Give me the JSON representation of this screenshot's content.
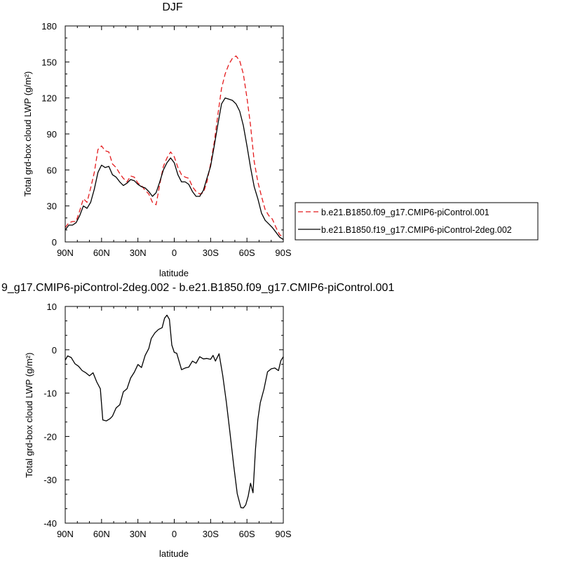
{
  "chart_data": [
    {
      "type": "line",
      "title": "DJF",
      "xlabel": "latitude",
      "ylabel": "Total grd-box cloud LWP (g/m²)",
      "xticks": [
        {
          "value": 90,
          "label": "90N"
        },
        {
          "value": 60,
          "label": "60N"
        },
        {
          "value": 30,
          "label": "30N"
        },
        {
          "value": 0,
          "label": "0"
        },
        {
          "value": -30,
          "label": "30S"
        },
        {
          "value": -60,
          "label": "60S"
        },
        {
          "value": -90,
          "label": "90S"
        }
      ],
      "xlim": [
        90,
        -90
      ],
      "ylim": [
        0,
        180
      ],
      "yticks": [
        0,
        30,
        60,
        90,
        120,
        150,
        180
      ],
      "legend_position": "right",
      "series": [
        {
          "name": "b.e21.B1850.f09_g17.CMIP6-piControl.001",
          "color": "#e41a1c",
          "dash": "dashed",
          "x": [
            90,
            87,
            84,
            81,
            78,
            75,
            72,
            69,
            66,
            63,
            60,
            57,
            54,
            51,
            48,
            45,
            42,
            39,
            36,
            33,
            30,
            27,
            24,
            21,
            18,
            15,
            12,
            9,
            6,
            3,
            0,
            -3,
            -6,
            -9,
            -12,
            -15,
            -18,
            -21,
            -24,
            -27,
            -30,
            -33,
            -36,
            -39,
            -42,
            -45,
            -48,
            -51,
            -54,
            -57,
            -60,
            -63,
            -66,
            -69,
            -72,
            -75,
            -78,
            -81,
            -84,
            -87,
            -90
          ],
          "y": [
            12,
            16,
            17,
            17,
            26,
            36,
            33,
            45,
            58,
            77,
            80,
            76,
            75,
            65,
            62,
            57,
            53,
            50,
            55,
            54,
            49,
            47,
            43,
            40,
            33,
            31,
            48,
            63,
            70,
            75,
            71,
            62,
            56,
            54,
            53,
            46,
            42,
            40,
            41,
            50,
            65,
            83,
            106,
            128,
            140,
            148,
            153,
            155,
            151,
            140,
            120,
            97,
            67,
            50,
            38,
            27,
            22,
            19,
            12,
            6,
            4
          ]
        },
        {
          "name": "b.e21.B1850.f19_g17.CMIP6-piControl-2deg.002",
          "color": "#000000",
          "dash": "solid",
          "x": [
            90,
            87,
            84,
            81,
            78,
            75,
            72,
            69,
            66,
            63,
            60,
            57,
            54,
            51,
            48,
            45,
            42,
            39,
            36,
            33,
            30,
            27,
            24,
            21,
            18,
            15,
            12,
            9,
            6,
            3,
            0,
            -3,
            -6,
            -9,
            -12,
            -15,
            -18,
            -21,
            -24,
            -27,
            -30,
            -33,
            -36,
            -39,
            -42,
            -45,
            -48,
            -51,
            -54,
            -57,
            -60,
            -63,
            -66,
            -69,
            -72,
            -75,
            -78,
            -81,
            -84,
            -87,
            -90
          ],
          "y": [
            10,
            14,
            14,
            16,
            22,
            30,
            28,
            33,
            44,
            58,
            64,
            62,
            63,
            56,
            54,
            50,
            47,
            49,
            52,
            51,
            48,
            46,
            45,
            42,
            38,
            41,
            50,
            60,
            66,
            70,
            66,
            56,
            50,
            50,
            48,
            42,
            38,
            38,
            43,
            53,
            63,
            80,
            98,
            115,
            120,
            119,
            118,
            115,
            109,
            97,
            80,
            62,
            46,
            36,
            24,
            18,
            15,
            12,
            8,
            4,
            2
          ]
        }
      ]
    },
    {
      "type": "line",
      "title": "9_g17.CMIP6-piControl-2deg.002 - b.e21.B1850.f09_g17.CMIP6-piControl.001",
      "xlabel": "latitude",
      "ylabel": "Total grd-box cloud LWP (g/m²)",
      "xticks": [
        {
          "value": 90,
          "label": "90N"
        },
        {
          "value": 60,
          "label": "60N"
        },
        {
          "value": 30,
          "label": "30N"
        },
        {
          "value": 0,
          "label": "0"
        },
        {
          "value": -30,
          "label": "30S"
        },
        {
          "value": -60,
          "label": "60S"
        },
        {
          "value": -90,
          "label": "90S"
        }
      ],
      "xlim": [
        90,
        -90
      ],
      "ylim": [
        -40,
        10
      ],
      "yticks": [
        -40,
        -30,
        -20,
        -10,
        0,
        10
      ],
      "series": [
        {
          "color": "#000000",
          "dash": "solid",
          "x": [
            90,
            88,
            85,
            82,
            79,
            76,
            73,
            70,
            67,
            64,
            61,
            59,
            56,
            53,
            51,
            48,
            45,
            42,
            39,
            36,
            33,
            30,
            27,
            24,
            21,
            19,
            16,
            13,
            10,
            8,
            6,
            4,
            2,
            0,
            -2,
            -6,
            -9,
            -12,
            -15,
            -18,
            -21,
            -24,
            -27,
            -30,
            -32,
            -34,
            -37,
            -40,
            -43,
            -46,
            -49,
            -52,
            -55,
            -57,
            -59,
            -61,
            -63,
            -65,
            -67,
            -69,
            -71,
            -74,
            -77,
            -80,
            -83,
            -86,
            -88,
            -90
          ],
          "y": [
            -2.4,
            -1.4,
            -1.8,
            -3.2,
            -3.8,
            -4.8,
            -5.3,
            -6.0,
            -5.3,
            -7.4,
            -9.0,
            -16.2,
            -16.4,
            -15.9,
            -15.3,
            -13.4,
            -12.7,
            -9.7,
            -9.0,
            -6.5,
            -5.2,
            -3.4,
            -4.1,
            -1.3,
            0.3,
            2.6,
            3.9,
            4.7,
            5.1,
            7.3,
            8.0,
            7.0,
            1.1,
            -0.6,
            -0.8,
            -4.6,
            -4.2,
            -4.0,
            -2.6,
            -3.1,
            -1.6,
            -2.1,
            -2.0,
            -2.2,
            -1.3,
            -2.6,
            -0.9,
            -5.9,
            -12.1,
            -19.2,
            -26.6,
            -33.2,
            -36.4,
            -36.5,
            -35.8,
            -33.8,
            -30.8,
            -33.0,
            -23.0,
            -16.1,
            -12.2,
            -9.1,
            -5.1,
            -4.4,
            -4.2,
            -4.8,
            -2.5,
            -1.6
          ]
        }
      ]
    }
  ]
}
